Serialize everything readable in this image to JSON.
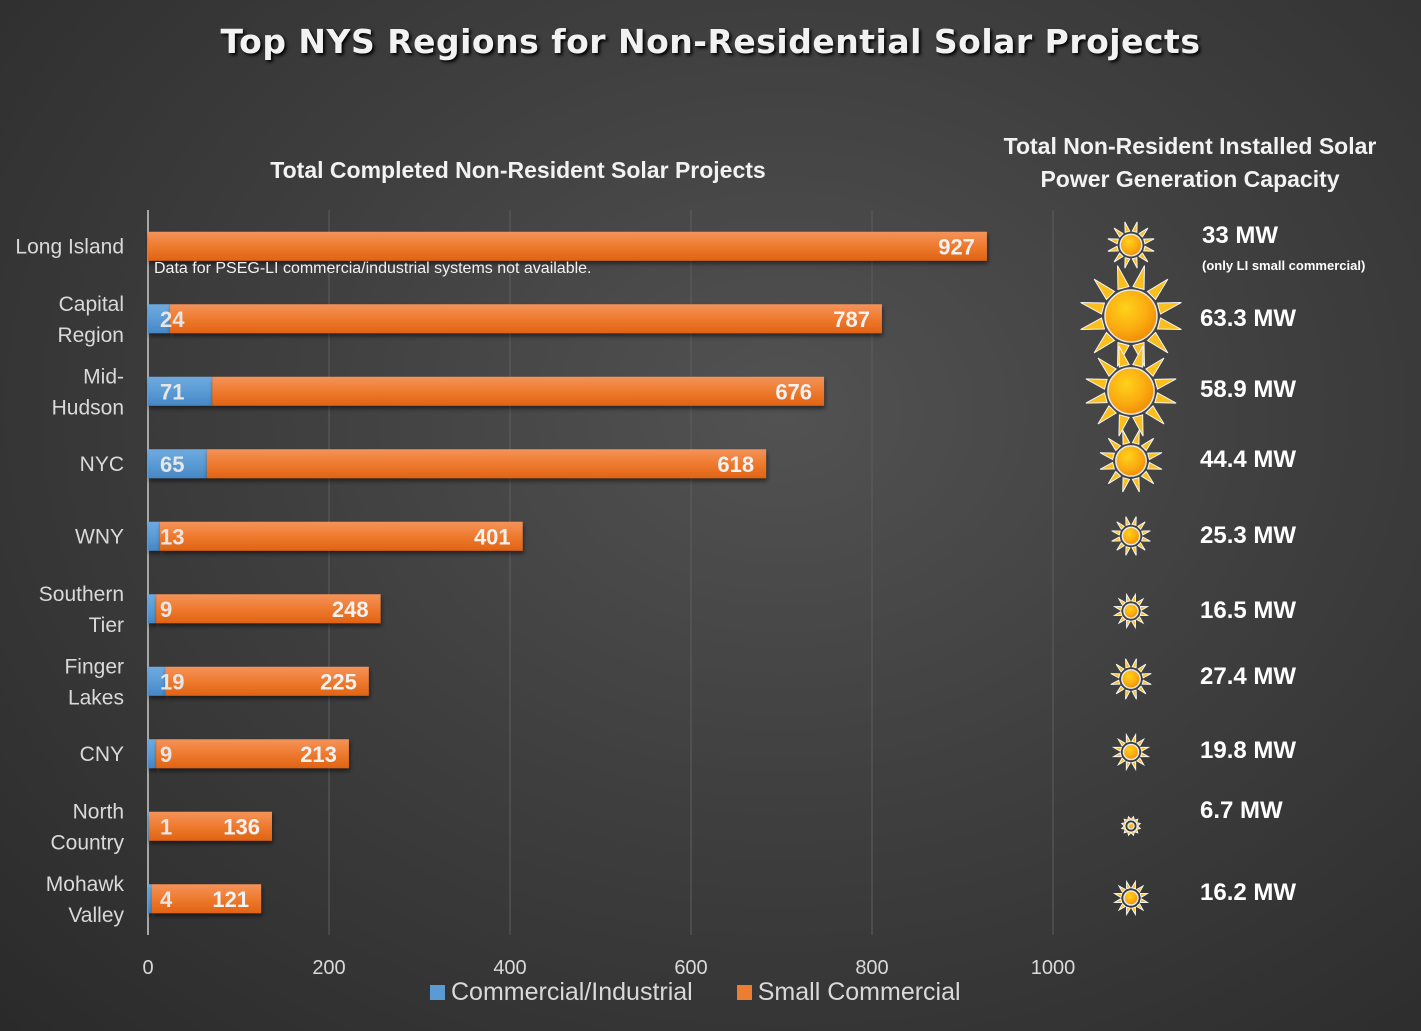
{
  "title": "Top NYS Regions for Non-Residential Solar Projects",
  "chart_data": [
    {
      "type": "bar",
      "orientation": "horizontal",
      "stacked": true,
      "title": "Total Completed Non-Resident Solar Projects",
      "categories": [
        "Long Island",
        "Capital Region",
        "Mid-Hudson",
        "NYC",
        "WNY",
        "Southern Tier",
        "Finger Lakes",
        "CNY",
        "North Country",
        "Mohawk Valley"
      ],
      "category_labels": [
        [
          "Long Island"
        ],
        [
          "Capital",
          "Region"
        ],
        [
          "Mid-",
          "Hudson"
        ],
        [
          "NYC"
        ],
        [
          "WNY"
        ],
        [
          "Southern",
          "Tier"
        ],
        [
          "Finger",
          "Lakes"
        ],
        [
          "CNY"
        ],
        [
          "North",
          "Country"
        ],
        [
          "Mohawk",
          "Valley"
        ]
      ],
      "series": [
        {
          "name": "Commercial/Industrial",
          "color": "#5b9bd5",
          "values": [
            0,
            24,
            71,
            65,
            13,
            9,
            19,
            9,
            1,
            4
          ],
          "labels": [
            "",
            "24",
            "71",
            "65",
            "13",
            "9",
            "19",
            "9",
            "1",
            "4"
          ]
        },
        {
          "name": "Small Commercial",
          "color": "#ed7d31",
          "values": [
            927,
            787,
            676,
            618,
            401,
            248,
            225,
            213,
            136,
            121
          ],
          "labels": [
            "927",
            "787",
            "676",
            "618",
            "401",
            "248",
            "225",
            "213",
            "136",
            "121"
          ]
        }
      ],
      "xlim": [
        0,
        1000
      ],
      "xticks": [
        0,
        200,
        400,
        600,
        800,
        1000
      ],
      "grid": true,
      "legend": "bottom",
      "annotation": "Data for PSEG-LI commercia/industrial systems not available."
    },
    {
      "type": "table",
      "title": "Total Non-Resident Installed Solar Power Generation Capacity",
      "title_lines": [
        "Total Non-Resident Installed Solar",
        "Power Generation Capacity"
      ],
      "unit": "MW",
      "categories": [
        "Long Island",
        "Capital Region",
        "Mid-Hudson",
        "NYC",
        "WNY",
        "Southern Tier",
        "Finger Lakes",
        "CNY",
        "North Country",
        "Mohawk Valley"
      ],
      "values": [
        33,
        63.3,
        58.9,
        44.4,
        25.3,
        16.5,
        27.4,
        19.8,
        6.7,
        16.2
      ],
      "labels": [
        "33 MW",
        "63.3 MW",
        "58.9 MW",
        "44.4 MW",
        "25.3 MW",
        "16.5 MW",
        "27.4 MW",
        "19.8 MW",
        "6.7 MW",
        "16.2 MW"
      ],
      "footnote": "(only LI small commercial)",
      "icon": "sun-icon"
    }
  ]
}
